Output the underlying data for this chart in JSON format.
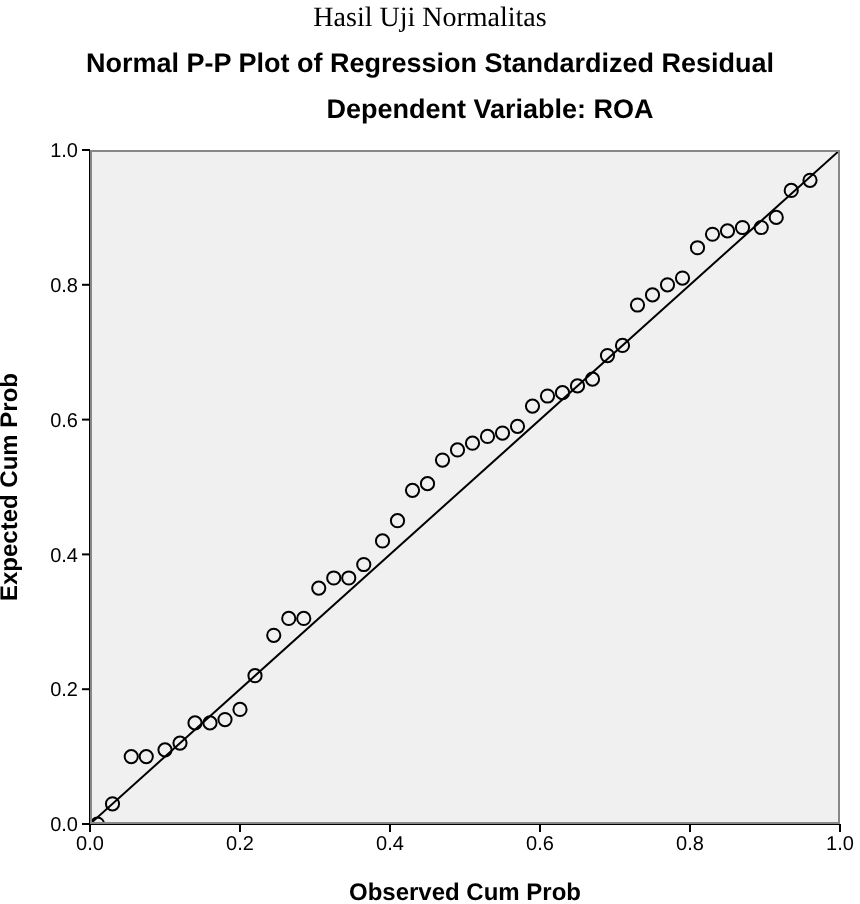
{
  "chart_data": {
    "type": "scatter",
    "title": "Normal P-P Plot of Regression Standardized Residual",
    "subtitle": "Dependent Variable: ROA",
    "annotations": [
      "Hasil Uji Normalitas"
    ],
    "xlabel": "Observed Cum Prob",
    "ylabel": "Expected Cum Prob",
    "xlim": [
      0,
      1
    ],
    "ylim": [
      0,
      1
    ],
    "xticks": [
      {
        "value": 0,
        "label": "0.0"
      },
      {
        "value": 0.2,
        "label": "0.2"
      },
      {
        "value": 0.4,
        "label": "0.4"
      },
      {
        "value": 0.6,
        "label": "0.6"
      },
      {
        "value": 0.8,
        "label": "0.8"
      },
      {
        "value": 1,
        "label": "1.0"
      }
    ],
    "yticks": [
      {
        "value": 0,
        "label": "0.0"
      },
      {
        "value": 0.2,
        "label": "0.2"
      },
      {
        "value": 0.4,
        "label": "0.4"
      },
      {
        "value": 0.6,
        "label": "0.6"
      },
      {
        "value": 0.8,
        "label": "0.8"
      },
      {
        "value": 1,
        "label": "1.0"
      }
    ],
    "series": [
      {
        "marker": "circle",
        "color": "#000000",
        "x": [
          0.01,
          0.03,
          0.055,
          0.075,
          0.1,
          0.12,
          0.14,
          0.16,
          0.18,
          0.2,
          0.22,
          0.245,
          0.265,
          0.285,
          0.305,
          0.325,
          0.345,
          0.365,
          0.39,
          0.41,
          0.43,
          0.45,
          0.47,
          0.49,
          0.51,
          0.53,
          0.55,
          0.57,
          0.59,
          0.61,
          0.63,
          0.65,
          0.67,
          0.69,
          0.71,
          0.73,
          0.75,
          0.77,
          0.79,
          0.81,
          0.83,
          0.85,
          0.87,
          0.895,
          0.915,
          0.935,
          0.96
        ],
        "values": [
          0.0,
          0.03,
          0.1,
          0.1,
          0.11,
          0.12,
          0.15,
          0.15,
          0.155,
          0.17,
          0.22,
          0.28,
          0.305,
          0.305,
          0.35,
          0.365,
          0.365,
          0.385,
          0.42,
          0.45,
          0.495,
          0.505,
          0.54,
          0.555,
          0.565,
          0.575,
          0.58,
          0.59,
          0.62,
          0.635,
          0.64,
          0.65,
          0.66,
          0.695,
          0.71,
          0.77,
          0.785,
          0.8,
          0.81,
          0.855,
          0.875,
          0.88,
          0.885,
          0.885,
          0.9,
          0.94,
          0.955
        ]
      },
      {
        "type": "line",
        "marker": "none",
        "color": "#000000",
        "x": [
          0,
          1
        ],
        "values": [
          0,
          1
        ]
      }
    ]
  }
}
